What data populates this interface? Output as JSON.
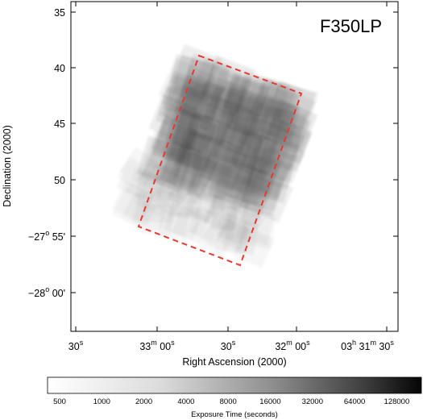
{
  "chart_data": {
    "type": "heatmap",
    "filter_label": "F350LP",
    "xlabel": "Right Ascension (2000)",
    "ylabel": "Declination (2000)",
    "x_tick_labels": [
      {
        "main": "30",
        "sup": "s"
      },
      {
        "main": "33",
        "sup": "m",
        "main2": " 00",
        "sup2": "s"
      },
      {
        "main": "30",
        "sup": "s"
      },
      {
        "main": "32",
        "sup": "m",
        "main2": " 00",
        "sup2": "s"
      },
      {
        "main": "03",
        "sup": "h",
        "main2": " 31",
        "sup3": "m",
        "main3": " 30",
        "sup4": "s"
      }
    ],
    "y_tick_labels": [
      {
        "text": "35"
      },
      {
        "text": "40"
      },
      {
        "text": "45"
      },
      {
        "text": "50"
      },
      {
        "pre": "−27",
        "sup": "o",
        "post": " 55'"
      },
      {
        "pre": "−28",
        "sup": "o",
        "post": " 00'"
      }
    ],
    "footprint_outline": {
      "color": "#e8382f",
      "style": "dashed"
    },
    "colorbar": {
      "title": "Exposure Time (seconds)",
      "ticks": [
        "500",
        "1000",
        "2000",
        "4000",
        "8000",
        "16000",
        "32000",
        "64000",
        "128000"
      ],
      "scale": "log",
      "colormap": "white-to-black"
    }
  }
}
